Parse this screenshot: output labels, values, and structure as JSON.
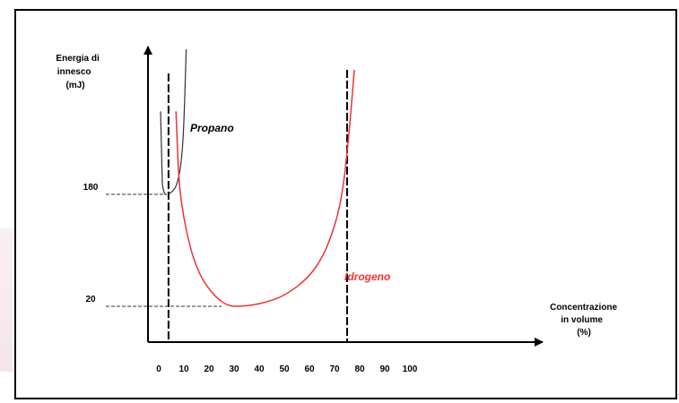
{
  "chart_data": {
    "type": "line",
    "title": "",
    "ylabel_lines": [
      "Energia di",
      "innesco",
      "(mJ)"
    ],
    "xlabel_lines": [
      "Concentrazione",
      "in volume",
      "(%)"
    ],
    "x_ticks": [
      0,
      10,
      20,
      30,
      40,
      50,
      60,
      70,
      80,
      90,
      100
    ],
    "y_ticks": [
      {
        "value": 20,
        "label": "20"
      },
      {
        "value": 180,
        "label": "180"
      }
    ],
    "xlim": [
      0,
      100
    ],
    "series": [
      {
        "name": "Propano",
        "color": "#333333",
        "x": [
          2.1,
          2.5,
          3.5,
          4.5,
          5.5,
          6.5,
          7.5,
          8.5,
          9.5
        ],
        "y": [
          180,
          180,
          182,
          184,
          188,
          196,
          210,
          240,
          320
        ]
      },
      {
        "name": "Idrogeno",
        "color": "#ee3333",
        "x": [
          4,
          4.5,
          5,
          6,
          8,
          10,
          12,
          15,
          20,
          25,
          30,
          35,
          40,
          45,
          50,
          55,
          60,
          65,
          70,
          73,
          75
        ],
        "y": [
          260,
          230,
          200,
          170,
          130,
          100,
          78,
          55,
          32,
          20,
          20,
          22,
          26,
          32,
          42,
          56,
          76,
          110,
          170,
          240,
          300
        ]
      }
    ],
    "flammability_limits": [
      2.1,
      75
    ],
    "grid": false,
    "legend": "inline labels"
  }
}
